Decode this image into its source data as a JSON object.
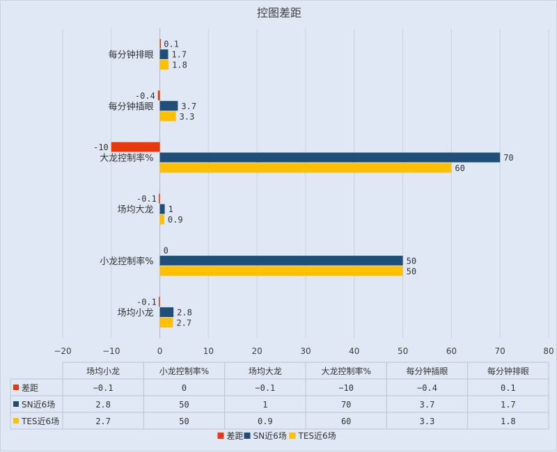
{
  "chart_data": {
    "type": "bar",
    "orientation": "horizontal",
    "title": "控图差距",
    "categories": [
      "场均小龙",
      "小龙控制率%",
      "场均大龙",
      "大龙控制率%",
      "每分钟插眼",
      "每分钟排眼"
    ],
    "series": [
      {
        "name": "差距",
        "color": "#e8380d",
        "values": [
          -0.1,
          0,
          -0.1,
          -10,
          -0.4,
          0.1
        ],
        "labels": [
          "-0.1",
          "0",
          "-0.1",
          "-10",
          "-0.4",
          "0.1"
        ]
      },
      {
        "name": "SN近6场",
        "color": "#1f4e79",
        "values": [
          2.8,
          50,
          1,
          70,
          3.7,
          1.7
        ],
        "labels": [
          "2.8",
          "50",
          "1",
          "70",
          "3.7",
          "1.7"
        ]
      },
      {
        "name": "TES近6场",
        "color": "#ffc000",
        "values": [
          2.7,
          50,
          0.9,
          60,
          3.3,
          1.8
        ],
        "labels": [
          "2.7",
          "50",
          "0.9",
          "60",
          "3.3",
          "1.8"
        ]
      }
    ],
    "xlim": [
      -20,
      80
    ],
    "x_ticks": [
      "-20",
      "-10",
      "0",
      "10",
      "20",
      "30",
      "40",
      "50",
      "60",
      "70",
      "80"
    ],
    "grid": true,
    "data_table": true,
    "legend_position": "bottom"
  }
}
